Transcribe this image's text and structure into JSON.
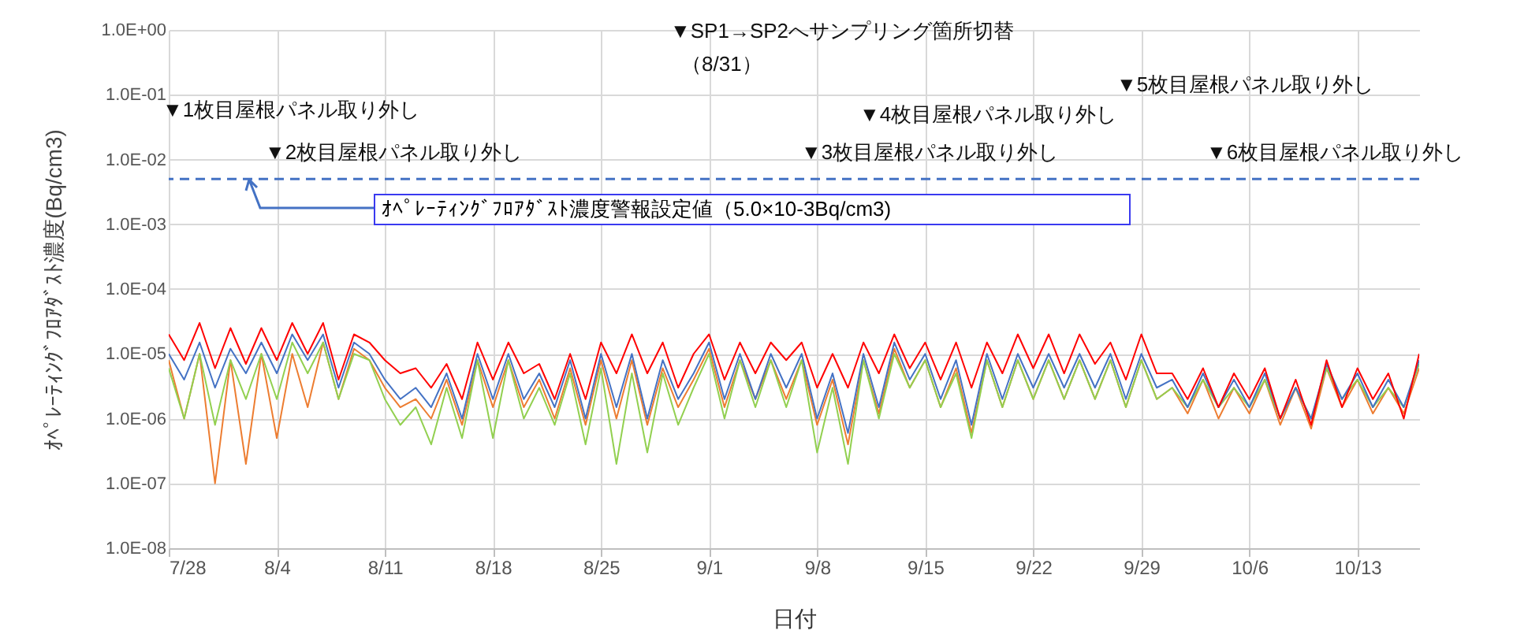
{
  "chart_data": {
    "type": "line",
    "xlabel": "日付",
    "ylabel": "ｵﾍﾟﾚｰﾃｨﾝｸﾞﾌﾛｱﾀﾞｽﾄ濃度(Bq/cm3)",
    "x": [
      "--07-28",
      "--07-29",
      "--07-30",
      "--07-31",
      "--08-01",
      "--08-02",
      "--08-03",
      "--08-04",
      "--08-05",
      "--08-06",
      "--08-07",
      "--08-08",
      "--08-09",
      "--08-10",
      "--08-11",
      "--08-12",
      "--08-13",
      "--08-14",
      "--08-15",
      "--08-16",
      "--08-17",
      "--08-18",
      "--08-19",
      "--08-20",
      "--08-21",
      "--08-22",
      "--08-23",
      "--08-24",
      "--08-25",
      "--08-26",
      "--08-27",
      "--08-28",
      "--08-29",
      "--08-30",
      "--08-31",
      "--09-01",
      "--09-02",
      "--09-03",
      "--09-04",
      "--09-05",
      "--09-06",
      "--09-07",
      "--09-08",
      "--09-09",
      "--09-10",
      "--09-11",
      "--09-12",
      "--09-13",
      "--09-14",
      "--09-15",
      "--09-16",
      "--09-17",
      "--09-18",
      "--09-19",
      "--09-20",
      "--09-21",
      "--09-22",
      "--09-23",
      "--09-24",
      "--09-25",
      "--09-26",
      "--09-27",
      "--09-28",
      "--09-29",
      "--09-30",
      "--10-01",
      "--10-02",
      "--10-03",
      "--10-04",
      "--10-05",
      "--10-06",
      "--10-07",
      "--10-08",
      "--10-09",
      "--10-10",
      "--10-11",
      "--10-12",
      "--10-13",
      "--10-14",
      "--10-15",
      "--10-16",
      "--10-17"
    ],
    "series": [
      {
        "color": "#ed7d31",
        "values": [
          8e-06,
          1e-06,
          1e-05,
          1e-07,
          8e-06,
          2e-07,
          1e-05,
          5e-07,
          1e-05,
          1.5e-06,
          1.5e-05,
          2e-06,
          1.2e-05,
          8e-06,
          3e-06,
          1.5e-06,
          2e-06,
          1e-06,
          4e-06,
          8e-07,
          8e-06,
          1.5e-06,
          8e-06,
          1.5e-06,
          4e-06,
          1e-06,
          6e-06,
          8e-07,
          8e-06,
          1e-06,
          8e-06,
          8e-07,
          6e-06,
          1.5e-06,
          4e-06,
          1.2e-05,
          1.5e-06,
          8e-06,
          2e-06,
          8e-06,
          2e-06,
          8e-06,
          8e-07,
          4e-06,
          4e-07,
          8e-06,
          1.2e-06,
          1.2e-05,
          3e-06,
          8e-06,
          1.5e-06,
          6e-06,
          6e-07,
          8e-06,
          1.5e-06,
          8e-06,
          2e-06,
          8e-06,
          2e-06,
          8e-06,
          2e-06,
          8e-06,
          1.5e-06,
          8e-06,
          2e-06,
          3e-06,
          1.2e-06,
          4e-06,
          1e-06,
          3e-06,
          1.2e-06,
          4e-06,
          8e-07,
          3e-06,
          7e-07,
          6e-06,
          1.5e-06,
          4e-06,
          1.2e-06,
          3e-06,
          1.2e-06,
          6e-06
        ]
      },
      {
        "color": "#92d050",
        "values": [
          6e-06,
          1e-06,
          1e-05,
          8e-07,
          8e-06,
          2e-06,
          1e-05,
          2e-06,
          1.5e-05,
          5e-06,
          1.5e-05,
          2e-06,
          1e-05,
          8e-06,
          2e-06,
          8e-07,
          1.5e-06,
          4e-07,
          3e-06,
          5e-07,
          8e-06,
          5e-07,
          8e-06,
          1e-06,
          3e-06,
          8e-07,
          5e-06,
          4e-07,
          6e-06,
          2e-07,
          5e-06,
          3e-07,
          5e-06,
          8e-07,
          3e-06,
          1e-05,
          1e-06,
          8e-06,
          1.5e-06,
          8e-06,
          1.5e-06,
          8e-06,
          3e-07,
          3e-06,
          2e-07,
          8e-06,
          1e-06,
          1e-05,
          3e-06,
          8e-06,
          1.5e-06,
          5e-06,
          5e-07,
          8e-06,
          1.5e-06,
          8e-06,
          2e-06,
          8e-06,
          2e-06,
          8e-06,
          2e-06,
          8e-06,
          1.5e-06,
          8e-06,
          2e-06,
          3e-06,
          1.5e-06,
          4e-06,
          1.5e-06,
          3e-06,
          1.5e-06,
          4e-06,
          1e-06,
          3e-06,
          1e-06,
          6e-06,
          2e-06,
          4e-06,
          1.5e-06,
          3e-06,
          1.5e-06,
          7e-06
        ]
      },
      {
        "color": "#4472c4",
        "values": [
          1e-05,
          4e-06,
          1.5e-05,
          3e-06,
          1.2e-05,
          5e-06,
          1.5e-05,
          5e-06,
          2e-05,
          8e-06,
          2e-05,
          3e-06,
          1.5e-05,
          1e-05,
          4e-06,
          2e-06,
          3e-06,
          1.5e-06,
          5e-06,
          1e-06,
          1e-05,
          2e-06,
          1e-05,
          2e-06,
          5e-06,
          1.5e-06,
          8e-06,
          1e-06,
          1e-05,
          1.5e-06,
          1e-05,
          1e-06,
          8e-06,
          2e-06,
          5e-06,
          1.5e-05,
          2e-06,
          1e-05,
          2e-06,
          1e-05,
          3e-06,
          1e-05,
          1e-06,
          5e-06,
          6e-07,
          1e-05,
          1.5e-06,
          1.5e-05,
          4e-06,
          1e-05,
          2e-06,
          8e-06,
          8e-07,
          1e-05,
          2e-06,
          1e-05,
          3e-06,
          1e-05,
          3e-06,
          1e-05,
          3e-06,
          1e-05,
          2e-06,
          1e-05,
          3e-06,
          4e-06,
          1.5e-06,
          5e-06,
          1.5e-06,
          4e-06,
          1.5e-06,
          5e-06,
          1e-06,
          3e-06,
          1e-06,
          7e-06,
          2e-06,
          5e-06,
          1.5e-06,
          4e-06,
          1.5e-06,
          8e-06
        ]
      },
      {
        "color": "#ff0000",
        "values": [
          2e-05,
          8e-06,
          3e-05,
          6e-06,
          2.5e-05,
          7e-06,
          2.5e-05,
          8e-06,
          3e-05,
          1e-05,
          3e-05,
          4e-06,
          2e-05,
          1.5e-05,
          8e-06,
          5e-06,
          6e-06,
          3e-06,
          7e-06,
          2e-06,
          1.5e-05,
          4e-06,
          1.5e-05,
          5e-06,
          7e-06,
          2e-06,
          1e-05,
          2e-06,
          1.5e-05,
          5e-06,
          2e-05,
          5e-06,
          1.5e-05,
          3e-06,
          1e-05,
          2e-05,
          4e-06,
          1.5e-05,
          5e-06,
          1.5e-05,
          8e-06,
          1.5e-05,
          3e-06,
          1e-05,
          3e-06,
          1.5e-05,
          5e-06,
          2e-05,
          6e-06,
          1.5e-05,
          4e-06,
          1.5e-05,
          3e-06,
          1.5e-05,
          5e-06,
          2e-05,
          6e-06,
          2e-05,
          5e-06,
          2e-05,
          7e-06,
          1.5e-05,
          4e-06,
          2e-05,
          5e-06,
          5e-06,
          2e-06,
          6e-06,
          1.5e-06,
          5e-06,
          2e-06,
          6e-06,
          1e-06,
          4e-06,
          8e-07,
          8e-06,
          1.5e-06,
          6e-06,
          2e-06,
          5e-06,
          1e-06,
          1e-05
        ]
      }
    ],
    "xlim": [
      "--07-28",
      "--10-17"
    ],
    "xticks": [
      {
        "value": "--07-28",
        "label": "7/28"
      },
      {
        "value": "--08-04",
        "label": "8/4"
      },
      {
        "value": "--08-11",
        "label": "8/11"
      },
      {
        "value": "--08-18",
        "label": "8/18"
      },
      {
        "value": "--08-25",
        "label": "8/25"
      },
      {
        "value": "--09-01",
        "label": "9/1"
      },
      {
        "value": "--09-08",
        "label": "9/8"
      },
      {
        "value": "--09-15",
        "label": "9/15"
      },
      {
        "value": "--09-22",
        "label": "9/22"
      },
      {
        "value": "--09-29",
        "label": "9/29"
      },
      {
        "value": "--10-06",
        "label": "10/6"
      },
      {
        "value": "--10-13",
        "label": "10/13"
      }
    ],
    "ylim": [
      1e-08,
      1
    ],
    "yticks": [
      {
        "value": 1e-08,
        "label": "1.0E-08"
      },
      {
        "value": 1e-07,
        "label": "1.0E-07"
      },
      {
        "value": 1e-06,
        "label": "1.0E-06"
      },
      {
        "value": 1e-05,
        "label": "1.0E-05"
      },
      {
        "value": 0.0001,
        "label": "1.0E-04"
      },
      {
        "value": 0.001,
        "label": "1.0E-03"
      },
      {
        "value": 0.01,
        "label": "1.0E-02"
      },
      {
        "value": 0.1,
        "label": "1.0E-01"
      },
      {
        "value": 1,
        "label": "1.0E+00"
      }
    ],
    "log": "y",
    "grid": true,
    "ref_lines": [
      {
        "axis": "y",
        "value": 0.005,
        "label": "ｵﾍﾟﾚｰﾃｨﾝｸﾞﾌﾛｱﾀﾞｽﾄ濃度警報設定値（5.0×10-3Bq/cm3)",
        "color": "#4472c4",
        "line_style": "dashed"
      }
    ],
    "annotations": [
      "▼1枚目屋根パネル取り外し",
      "▼2枚目屋根パネル取り外し",
      "▼SP1→SP2へサンプリング箇所切替",
      "（8/31）",
      "▼3枚目屋根パネル取り外し",
      "▼4枚目屋根パネル取り外し",
      "▼5枚目屋根パネル取り外し",
      "▼6枚目屋根パネル取り外し"
    ]
  }
}
